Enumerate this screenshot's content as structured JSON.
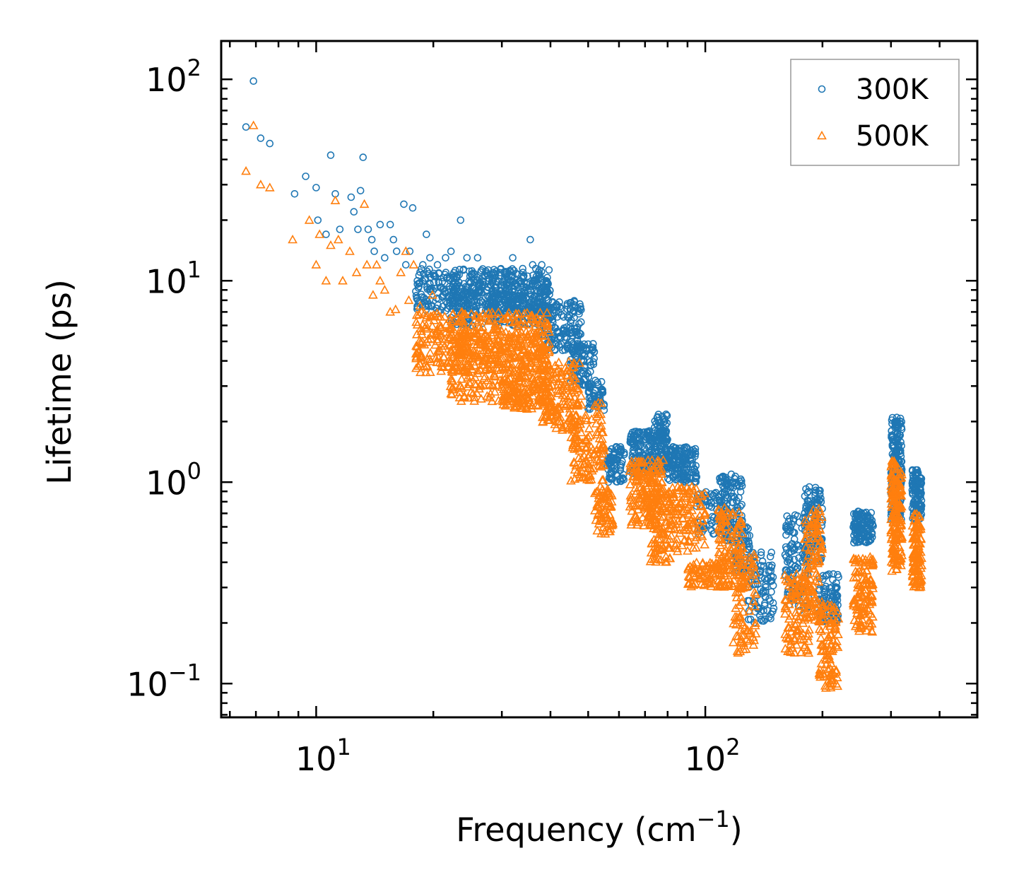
{
  "chart_data": {
    "type": "scatter",
    "title": "",
    "xlabel": {
      "base": "Frequency (cm",
      "sup": "−1",
      "tail": ")"
    },
    "ylabel": "Lifetime (ps)",
    "xscale": "log",
    "yscale": "log",
    "xlim": [
      5.7,
      500
    ],
    "ylim": [
      0.068,
      155
    ],
    "x_ticks": [
      {
        "value": 10,
        "base": "10",
        "exp": "1"
      },
      {
        "value": 100,
        "base": "10",
        "exp": "2"
      }
    ],
    "y_ticks": [
      {
        "value": 0.1,
        "base": "10",
        "exp": "−1"
      },
      {
        "value": 1,
        "base": "10",
        "exp": "0"
      },
      {
        "value": 10,
        "base": "10",
        "exp": "1"
      },
      {
        "value": 100,
        "base": "10",
        "exp": "2"
      }
    ],
    "legend": {
      "position": "top-right"
    },
    "series": [
      {
        "name": "300K",
        "marker": "circle",
        "color": "#1f77b4",
        "segments": [
          [
            6.6,
            58
          ],
          [
            6.9,
            98
          ],
          [
            7.2,
            51
          ],
          [
            7.6,
            48
          ],
          [
            8.8,
            27
          ],
          [
            9.4,
            33
          ],
          [
            10,
            29
          ],
          [
            10.1,
            20
          ],
          [
            10.6,
            17
          ],
          [
            10.9,
            42
          ],
          [
            11.2,
            27
          ],
          [
            11.5,
            18
          ],
          [
            12.3,
            26
          ],
          [
            12.5,
            22
          ],
          [
            12.8,
            18
          ],
          [
            13,
            28
          ],
          [
            13.2,
            41
          ],
          [
            13.6,
            18
          ],
          [
            13.9,
            16
          ],
          [
            14.1,
            14
          ],
          [
            14.6,
            19
          ],
          [
            15,
            13
          ],
          [
            15.5,
            19
          ],
          [
            15.8,
            16
          ],
          [
            16.1,
            14
          ],
          [
            16.8,
            24
          ],
          [
            17,
            12
          ],
          [
            17.4,
            14
          ],
          [
            17.7,
            23
          ],
          [
            18.2,
            10
          ],
          [
            18.8,
            12
          ],
          [
            19.2,
            17
          ],
          [
            19.6,
            13
          ],
          [
            20.5,
            12
          ],
          [
            21.5,
            13
          ],
          [
            22.2,
            14
          ],
          [
            23.5,
            20
          ],
          [
            24.4,
            13
          ],
          [
            26,
            13
          ],
          [
            28.5,
            11
          ],
          [
            32,
            13
          ],
          [
            34,
            11
          ],
          [
            35.5,
            16
          ],
          [
            36,
            12
          ],
          [
            38,
            12
          ]
        ],
        "bands": [
          [
            18,
            40,
            7,
            11.5,
            400
          ],
          [
            22,
            40,
            6,
            10,
            300
          ],
          [
            38,
            48,
            4.5,
            8,
            150
          ],
          [
            45,
            52,
            3,
            5,
            90
          ],
          [
            50,
            55,
            2.2,
            3.2,
            50
          ],
          [
            56,
            62,
            1.0,
            1.5,
            80
          ],
          [
            64,
            80,
            1.1,
            1.8,
            220
          ],
          [
            74,
            80,
            1.6,
            2.2,
            40
          ],
          [
            80,
            95,
            1.0,
            1.5,
            150
          ],
          [
            95,
            115,
            0.55,
            0.9,
            70
          ],
          [
            108,
            125,
            0.5,
            1.1,
            120
          ],
          [
            118,
            130,
            0.35,
            0.6,
            60
          ],
          [
            128,
            150,
            0.2,
            0.45,
            90
          ],
          [
            160,
            185,
            0.23,
            0.7,
            110
          ],
          [
            180,
            200,
            0.4,
            0.95,
            110
          ],
          [
            196,
            220,
            0.2,
            0.35,
            90
          ],
          [
            240,
            270,
            0.5,
            0.72,
            120
          ],
          [
            300,
            320,
            0.65,
            2.1,
            180
          ],
          [
            340,
            360,
            0.65,
            1.15,
            110
          ]
        ]
      },
      {
        "name": "500K",
        "marker": "triangle",
        "color": "#ff7f0e",
        "segments": [
          [
            6.6,
            35
          ],
          [
            6.9,
            59
          ],
          [
            7.2,
            30
          ],
          [
            7.6,
            29
          ],
          [
            8.7,
            16
          ],
          [
            9.6,
            20
          ],
          [
            10,
            12
          ],
          [
            10.2,
            17
          ],
          [
            10.6,
            10
          ],
          [
            10.9,
            15
          ],
          [
            11.2,
            25
          ],
          [
            11.4,
            16
          ],
          [
            11.7,
            10
          ],
          [
            12.2,
            14
          ],
          [
            12.7,
            11
          ],
          [
            13.3,
            24
          ],
          [
            13.5,
            12
          ],
          [
            14,
            8.5
          ],
          [
            14.3,
            12
          ],
          [
            14.6,
            10
          ],
          [
            15,
            9
          ],
          [
            15.5,
            7
          ],
          [
            16,
            7.2
          ],
          [
            16.5,
            11
          ],
          [
            17,
            14
          ],
          [
            17.3,
            8
          ],
          [
            17.8,
            12
          ],
          [
            18.5,
            7.5
          ],
          [
            19.2,
            6
          ],
          [
            19.9,
            8.5
          ],
          [
            20.5,
            5
          ]
        ],
        "bands": [
          [
            18,
            40,
            3.5,
            7,
            400
          ],
          [
            22,
            40,
            2.5,
            5.5,
            300
          ],
          [
            30,
            40,
            2.3,
            3.5,
            90
          ],
          [
            38,
            48,
            1.8,
            4,
            150
          ],
          [
            45,
            55,
            1.0,
            2.5,
            120
          ],
          [
            52,
            58,
            0.55,
            0.95,
            70
          ],
          [
            64,
            78,
            0.6,
            1.3,
            180
          ],
          [
            72,
            82,
            0.4,
            0.9,
            100
          ],
          [
            82,
            100,
            0.45,
            0.95,
            110
          ],
          [
            90,
            110,
            0.3,
            0.4,
            80
          ],
          [
            108,
            125,
            0.3,
            0.75,
            120
          ],
          [
            118,
            135,
            0.14,
            0.45,
            90
          ],
          [
            160,
            185,
            0.14,
            0.35,
            110
          ],
          [
            180,
            200,
            0.2,
            0.75,
            110
          ],
          [
            196,
            220,
            0.095,
            0.25,
            100
          ],
          [
            240,
            270,
            0.18,
            0.45,
            120
          ],
          [
            300,
            320,
            0.35,
            1.3,
            180
          ],
          [
            340,
            360,
            0.3,
            0.7,
            110
          ]
        ]
      }
    ]
  }
}
